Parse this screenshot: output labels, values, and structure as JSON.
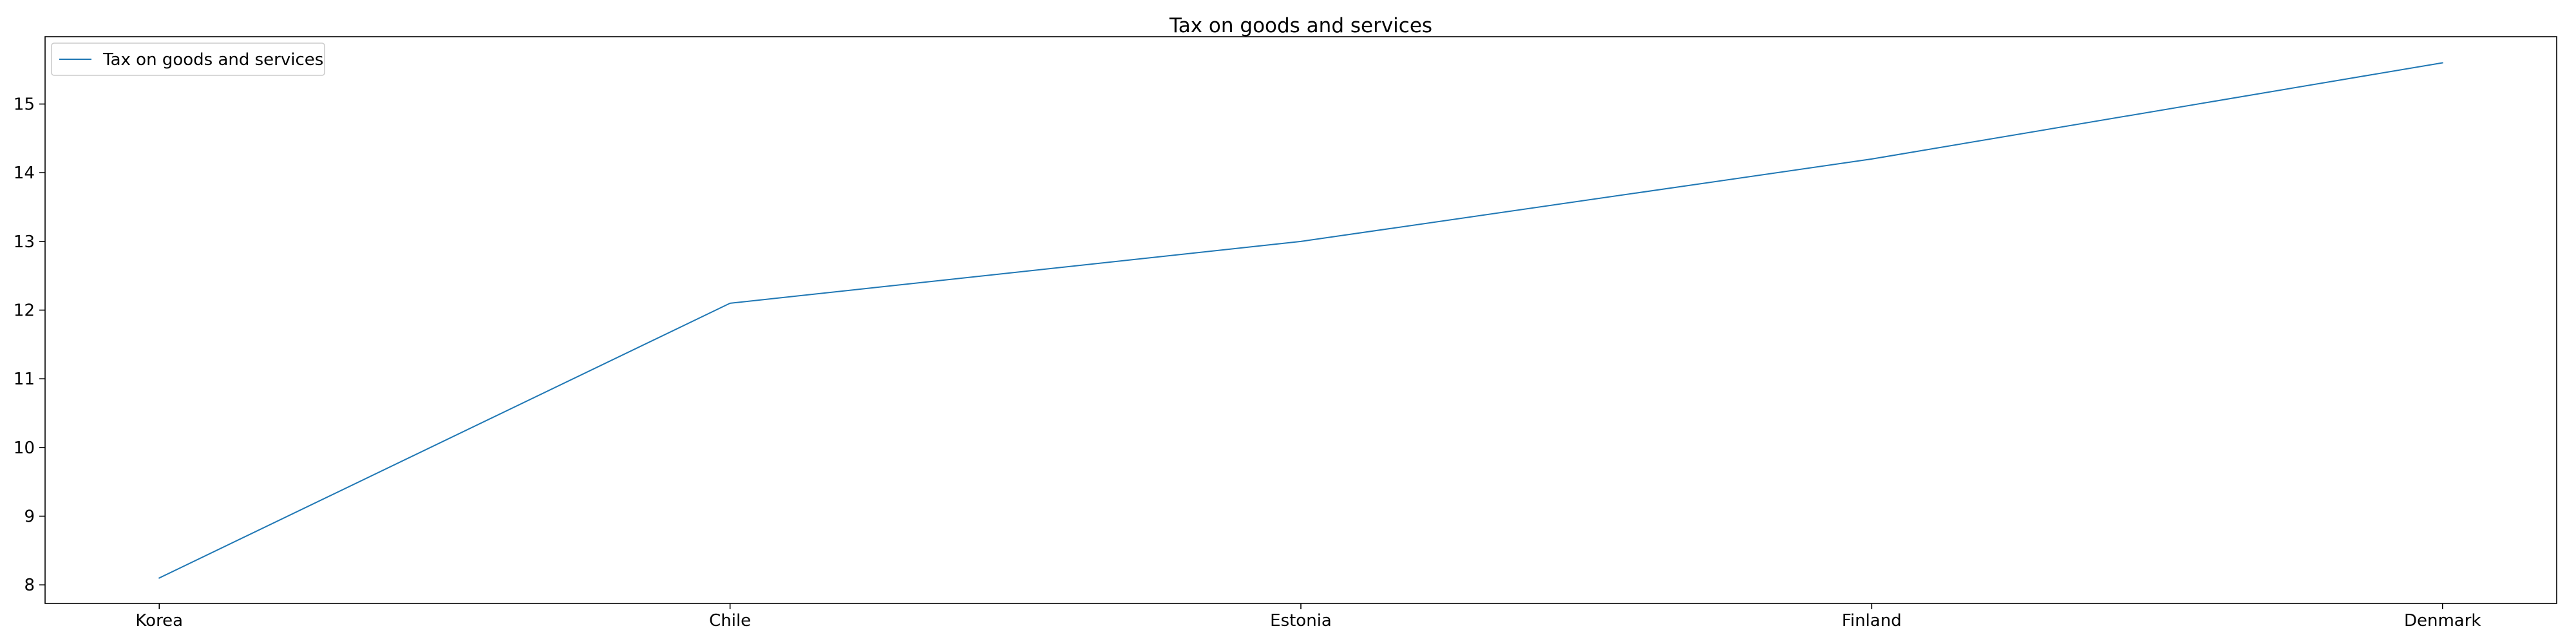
{
  "chart_data": {
    "type": "line",
    "title": "Tax on goods and services",
    "xlabel": "",
    "ylabel": "",
    "categories": [
      "Korea",
      "Chile",
      "Estonia",
      "Finland",
      "Denmark"
    ],
    "series": [
      {
        "name": "Tax on goods and services",
        "values": [
          8.1,
          12.1,
          13.0,
          14.2,
          15.6
        ],
        "color": "#1f77b4"
      }
    ],
    "ylim": [
      7.73,
      15.98
    ],
    "yticks": [
      8,
      9,
      10,
      11,
      12,
      13,
      14,
      15
    ],
    "grid": false,
    "legend": "upper left"
  }
}
